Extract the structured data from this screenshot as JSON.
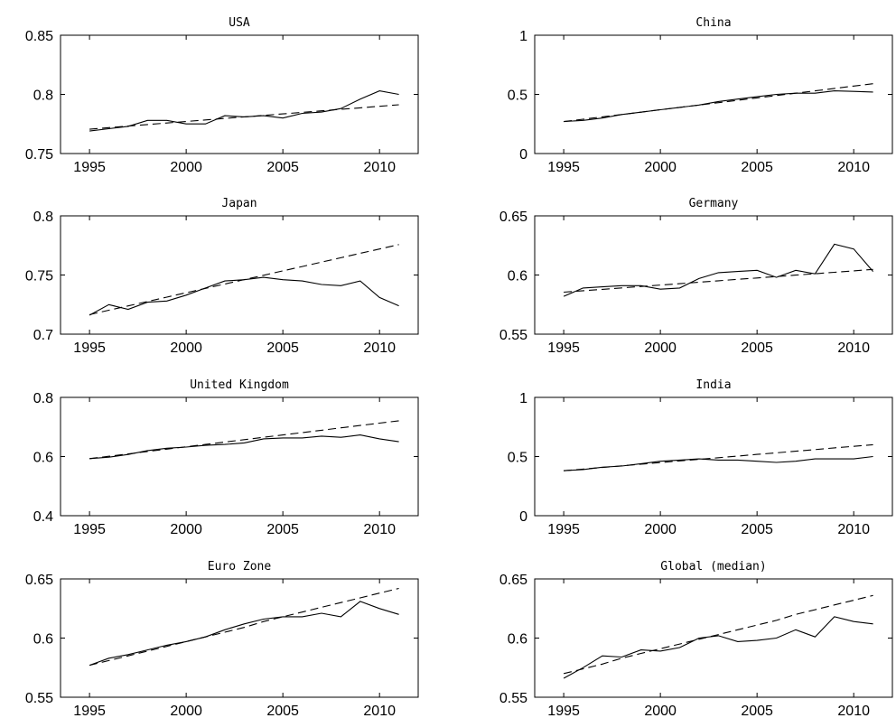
{
  "chart_data": [
    {
      "type": "line",
      "title": "USA",
      "xlim": [
        1993.5,
        2012
      ],
      "ylim": [
        0.75,
        0.85
      ],
      "xticks": [
        1995,
        2000,
        2005,
        2010
      ],
      "xtick_labels": [
        "1995",
        "2000",
        "2005",
        "2010"
      ],
      "yticks": [
        0.75,
        0.8,
        0.85
      ],
      "ytick_labels": [
        "0.75",
        "0.8",
        "0.85"
      ],
      "grid": false,
      "x": [
        1995,
        1996,
        1997,
        1998,
        1999,
        2000,
        2001,
        2002,
        2003,
        2004,
        2005,
        2006,
        2007,
        2008,
        2009,
        2010,
        2011
      ],
      "series": [
        {
          "style": "solid",
          "values": [
            0.769,
            0.771,
            0.773,
            0.778,
            0.778,
            0.775,
            0.775,
            0.782,
            0.781,
            0.782,
            0.78,
            0.784,
            0.785,
            0.788,
            0.796,
            0.803,
            0.8
          ]
        },
        {
          "style": "dashed",
          "values": [
            0.7705,
            0.7719,
            0.7732,
            0.7745,
            0.7758,
            0.7771,
            0.7784,
            0.7797,
            0.781,
            0.7822,
            0.7835,
            0.7848,
            0.7861,
            0.7874,
            0.7886,
            0.7899,
            0.7912
          ]
        }
      ]
    },
    {
      "type": "line",
      "title": "China",
      "xlim": [
        1993.5,
        2012
      ],
      "ylim": [
        0,
        1
      ],
      "xticks": [
        1995,
        2000,
        2005,
        2010
      ],
      "xtick_labels": [
        "1995",
        "2000",
        "2005",
        "2010"
      ],
      "yticks": [
        0,
        0.5,
        1
      ],
      "ytick_labels": [
        "0",
        "0.5",
        "1"
      ],
      "grid": false,
      "x": [
        1995,
        1996,
        1997,
        1998,
        1999,
        2000,
        2001,
        2002,
        2003,
        2004,
        2005,
        2006,
        2007,
        2008,
        2009,
        2010,
        2011
      ],
      "series": [
        {
          "style": "solid",
          "values": [
            0.27,
            0.28,
            0.3,
            0.33,
            0.35,
            0.37,
            0.39,
            0.41,
            0.44,
            0.46,
            0.48,
            0.5,
            0.51,
            0.51,
            0.53,
            0.525,
            0.52
          ]
        },
        {
          "style": "dashed",
          "values": [
            0.27,
            0.29,
            0.31,
            0.33,
            0.35,
            0.37,
            0.39,
            0.41,
            0.43,
            0.45,
            0.47,
            0.49,
            0.51,
            0.53,
            0.55,
            0.57,
            0.59
          ]
        }
      ]
    },
    {
      "type": "line",
      "title": "Japan",
      "xlim": [
        1993.5,
        2012
      ],
      "ylim": [
        0.7,
        0.8
      ],
      "xticks": [
        1995,
        2000,
        2005,
        2010
      ],
      "xtick_labels": [
        "1995",
        "2000",
        "2005",
        "2010"
      ],
      "yticks": [
        0.7,
        0.75,
        0.8
      ],
      "ytick_labels": [
        "0.7",
        "0.75",
        "0.8"
      ],
      "grid": false,
      "x": [
        1995,
        1996,
        1997,
        1998,
        1999,
        2000,
        2001,
        2002,
        2003,
        2004,
        2005,
        2006,
        2007,
        2008,
        2009,
        2010,
        2011
      ],
      "series": [
        {
          "style": "solid",
          "values": [
            0.716,
            0.725,
            0.721,
            0.727,
            0.728,
            0.733,
            0.739,
            0.745,
            0.746,
            0.748,
            0.746,
            0.745,
            0.742,
            0.741,
            0.745,
            0.731,
            0.724
          ]
        },
        {
          "style": "dashed",
          "values": [
            0.7165,
            0.7202,
            0.7239,
            0.7276,
            0.7313,
            0.735,
            0.7387,
            0.7424,
            0.7461,
            0.7498,
            0.7535,
            0.7572,
            0.7609,
            0.7646,
            0.7683,
            0.772,
            0.7757
          ]
        }
      ]
    },
    {
      "type": "line",
      "title": "Germany",
      "xlim": [
        1993.5,
        2012
      ],
      "ylim": [
        0.55,
        0.65
      ],
      "xticks": [
        1995,
        2000,
        2005,
        2010
      ],
      "xtick_labels": [
        "1995",
        "2000",
        "2005",
        "2010"
      ],
      "yticks": [
        0.55,
        0.6,
        0.65
      ],
      "ytick_labels": [
        "0.55",
        "0.6",
        "0.65"
      ],
      "grid": false,
      "x": [
        1995,
        1996,
        1997,
        1998,
        1999,
        2000,
        2001,
        2002,
        2003,
        2004,
        2005,
        2006,
        2007,
        2008,
        2009,
        2010,
        2011
      ],
      "series": [
        {
          "style": "solid",
          "values": [
            0.582,
            0.589,
            0.59,
            0.591,
            0.591,
            0.588,
            0.589,
            0.597,
            0.602,
            0.603,
            0.604,
            0.598,
            0.604,
            0.601,
            0.626,
            0.622,
            0.603
          ]
        },
        {
          "style": "dashed",
          "values": [
            0.5855,
            0.5867,
            0.5879,
            0.5891,
            0.5903,
            0.5915,
            0.5927,
            0.5939,
            0.5951,
            0.5963,
            0.5975,
            0.5987,
            0.5999,
            0.6011,
            0.6023,
            0.6035,
            0.6047
          ]
        }
      ]
    },
    {
      "type": "line",
      "title": "United Kingdom",
      "xlim": [
        1993.5,
        2012
      ],
      "ylim": [
        0.4,
        0.8
      ],
      "xticks": [
        1995,
        2000,
        2005,
        2010
      ],
      "xtick_labels": [
        "1995",
        "2000",
        "2005",
        "2010"
      ],
      "yticks": [
        0.4,
        0.6,
        0.8
      ],
      "ytick_labels": [
        "0.4",
        "0.6",
        "0.8"
      ],
      "grid": false,
      "x": [
        1995,
        1996,
        1997,
        1998,
        1999,
        2000,
        2001,
        2002,
        2003,
        2004,
        2005,
        2006,
        2007,
        2008,
        2009,
        2010,
        2011
      ],
      "series": [
        {
          "style": "solid",
          "values": [
            0.593,
            0.598,
            0.607,
            0.62,
            0.628,
            0.632,
            0.638,
            0.641,
            0.646,
            0.66,
            0.663,
            0.663,
            0.669,
            0.665,
            0.673,
            0.66,
            0.65
          ]
        },
        {
          "style": "dashed",
          "values": [
            0.593,
            0.601,
            0.609,
            0.617,
            0.625,
            0.633,
            0.641,
            0.649,
            0.657,
            0.665,
            0.673,
            0.681,
            0.689,
            0.697,
            0.705,
            0.713,
            0.721
          ]
        }
      ]
    },
    {
      "type": "line",
      "title": "India",
      "xlim": [
        1993.5,
        2012
      ],
      "ylim": [
        0,
        1
      ],
      "xticks": [
        1995,
        2000,
        2005,
        2010
      ],
      "xtick_labels": [
        "1995",
        "2000",
        "2005",
        "2010"
      ],
      "yticks": [
        0,
        0.5,
        1
      ],
      "ytick_labels": [
        "0",
        "0.5",
        "1"
      ],
      "grid": false,
      "x": [
        1995,
        1996,
        1997,
        1998,
        1999,
        2000,
        2001,
        2002,
        2003,
        2004,
        2005,
        2006,
        2007,
        2008,
        2009,
        2010,
        2011
      ],
      "series": [
        {
          "style": "solid",
          "values": [
            0.38,
            0.39,
            0.41,
            0.42,
            0.44,
            0.46,
            0.47,
            0.48,
            0.47,
            0.47,
            0.46,
            0.45,
            0.46,
            0.48,
            0.48,
            0.48,
            0.5
          ]
        },
        {
          "style": "dashed",
          "values": [
            0.38,
            0.394,
            0.408,
            0.421,
            0.435,
            0.449,
            0.463,
            0.476,
            0.49,
            0.504,
            0.518,
            0.531,
            0.545,
            0.559,
            0.573,
            0.586,
            0.6
          ]
        }
      ]
    },
    {
      "type": "line",
      "title": "Euro Zone",
      "xlim": [
        1993.5,
        2012
      ],
      "ylim": [
        0.55,
        0.65
      ],
      "xticks": [
        1995,
        2000,
        2005,
        2010
      ],
      "xtick_labels": [
        "1995",
        "2000",
        "2005",
        "2010"
      ],
      "yticks": [
        0.55,
        0.6,
        0.65
      ],
      "ytick_labels": [
        "0.55",
        "0.6",
        "0.65"
      ],
      "grid": false,
      "x": [
        1995,
        1996,
        1997,
        1998,
        1999,
        2000,
        2001,
        2002,
        2003,
        2004,
        2005,
        2006,
        2007,
        2008,
        2009,
        2010,
        2011
      ],
      "series": [
        {
          "style": "solid",
          "values": [
            0.577,
            0.583,
            0.586,
            0.59,
            0.594,
            0.597,
            0.601,
            0.607,
            0.612,
            0.616,
            0.618,
            0.618,
            0.621,
            0.618,
            0.631,
            0.625,
            0.62
          ]
        },
        {
          "style": "dashed",
          "values": [
            0.577,
            0.581,
            0.585,
            0.589,
            0.593,
            0.597,
            0.601,
            0.605,
            0.609,
            0.614,
            0.618,
            0.622,
            0.626,
            0.63,
            0.634,
            0.638,
            0.642
          ]
        }
      ]
    },
    {
      "type": "line",
      "title": "Global (median)",
      "xlim": [
        1993.5,
        2012
      ],
      "ylim": [
        0.55,
        0.65
      ],
      "xticks": [
        1995,
        2000,
        2005,
        2010
      ],
      "xtick_labels": [
        "1995",
        "2000",
        "2005",
        "2010"
      ],
      "yticks": [
        0.55,
        0.6,
        0.65
      ],
      "ytick_labels": [
        "0.55",
        "0.6",
        "0.65"
      ],
      "grid": false,
      "x": [
        1995,
        1996,
        1997,
        1998,
        1999,
        2000,
        2001,
        2002,
        2003,
        2004,
        2005,
        2006,
        2007,
        2008,
        2009,
        2010,
        2011
      ],
      "series": [
        {
          "style": "solid",
          "values": [
            0.566,
            0.575,
            0.585,
            0.584,
            0.59,
            0.589,
            0.592,
            0.6,
            0.602,
            0.597,
            0.598,
            0.6,
            0.607,
            0.601,
            0.618,
            0.614,
            0.612
          ]
        },
        {
          "style": "dashed",
          "values": [
            0.57,
            0.574,
            0.578,
            0.583,
            0.587,
            0.591,
            0.595,
            0.599,
            0.603,
            0.607,
            0.611,
            0.615,
            0.62,
            0.624,
            0.628,
            0.632,
            0.636
          ]
        }
      ]
    }
  ]
}
